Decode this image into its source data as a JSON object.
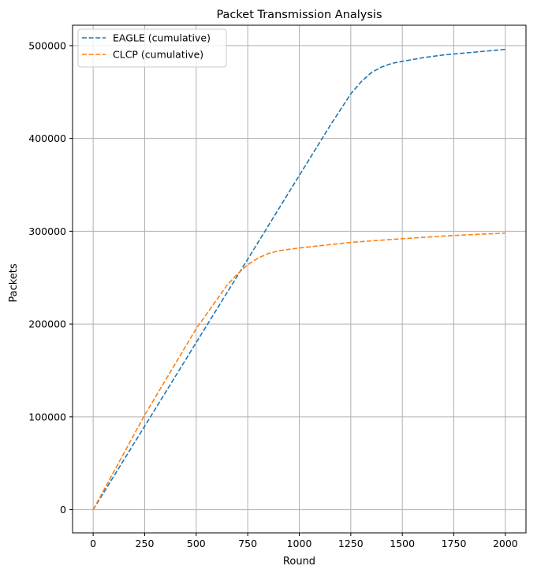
{
  "chart_data": {
    "type": "line",
    "title": "Packet Transmission Analysis",
    "xlabel": "Round",
    "ylabel": "Packets",
    "xlim": [
      -100,
      2100
    ],
    "ylim": [
      -25000,
      522000
    ],
    "xticks": [
      0,
      250,
      500,
      750,
      1000,
      1250,
      1500,
      1750,
      2000
    ],
    "xtick_labels": [
      "0",
      "250",
      "500",
      "750",
      "1000",
      "1250",
      "1500",
      "1750",
      "2000"
    ],
    "yticks": [
      0,
      100000,
      200000,
      300000,
      400000,
      500000
    ],
    "ytick_labels": [
      "0",
      "100000",
      "200000",
      "300000",
      "400000",
      "500000"
    ],
    "grid": true,
    "legend_position": "top-left",
    "series": [
      {
        "name": "EAGLE (cumulative)",
        "color": "#1f77b4",
        "line_style": "dashed",
        "x": [
          0,
          250,
          500,
          750,
          1000,
          1150,
          1250,
          1300,
          1350,
          1400,
          1450,
          1500,
          1600,
          1700,
          1800,
          1900,
          2000
        ],
        "y": [
          0,
          90000,
          180000,
          270000,
          360000,
          414000,
          448000,
          461000,
          471000,
          477000,
          481000,
          483000,
          487000,
          490000,
          492000,
          494000,
          496000
        ]
      },
      {
        "name": "CLCP (cumulative)",
        "color": "#ff7f0e",
        "line_style": "dashed",
        "x": [
          0,
          250,
          500,
          650,
          700,
          750,
          800,
          850,
          900,
          1000,
          1250,
          1500,
          1750,
          2000
        ],
        "y": [
          0,
          102000,
          195000,
          242000,
          254000,
          264000,
          271000,
          276000,
          279000,
          282000,
          288000,
          292000,
          295500,
          298000
        ]
      }
    ]
  }
}
